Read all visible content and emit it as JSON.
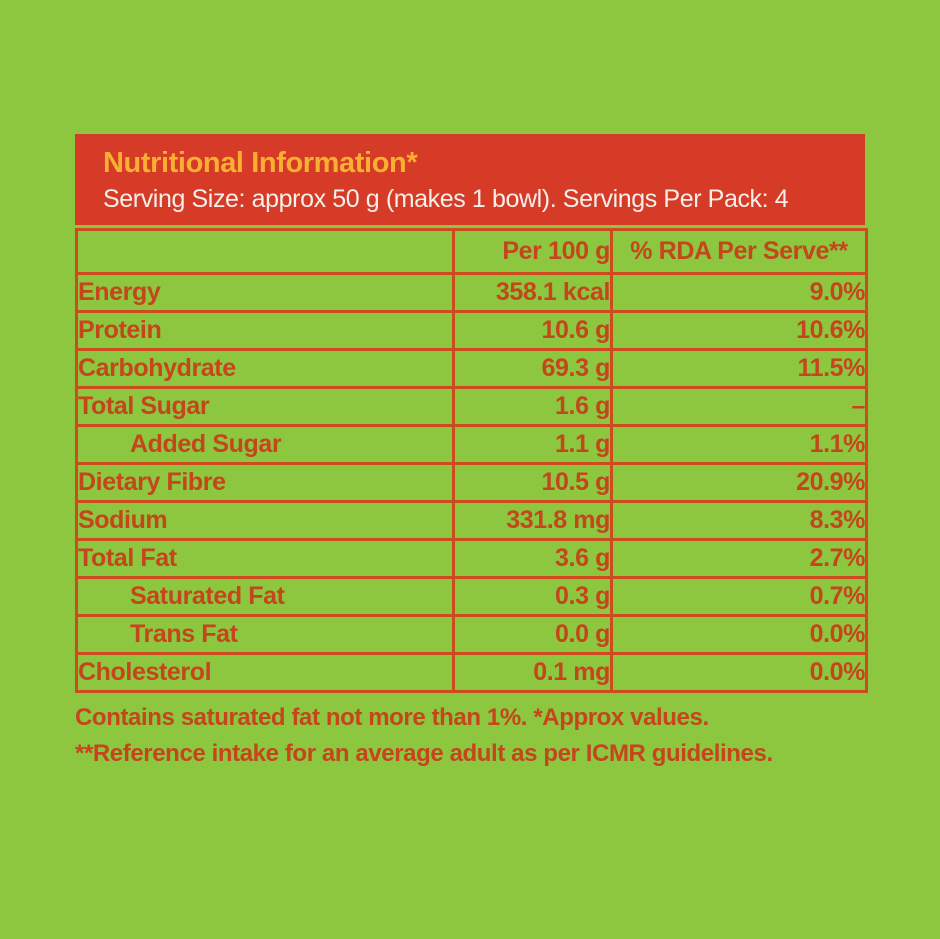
{
  "page": {
    "background_color": "#8DC63F"
  },
  "header": {
    "title": "Nutritional Information*",
    "serving_line": "Serving Size: approx 50 g (makes 1 bowl). Servings Per Pack: 4",
    "background_color": "#D53B26",
    "title_color": "#F9AF32",
    "serving_text_color": "#F4EFE9"
  },
  "table": {
    "border_color": "#CE4A1F",
    "text_color": "#C5451C",
    "columns": [
      "",
      "Per 100 g",
      "% RDA Per Serve**"
    ],
    "rows": [
      {
        "label": "Energy",
        "indent": false,
        "per_100g": "358.1 kcal",
        "rda_per_serve": "9.0%"
      },
      {
        "label": "Protein",
        "indent": false,
        "per_100g": "10.6 g",
        "rda_per_serve": "10.6%"
      },
      {
        "label": "Carbohydrate",
        "indent": false,
        "per_100g": "69.3 g",
        "rda_per_serve": "11.5%"
      },
      {
        "label": "Total Sugar",
        "indent": false,
        "per_100g": "1.6 g",
        "rda_per_serve": "–"
      },
      {
        "label": "Added Sugar",
        "indent": true,
        "per_100g": "1.1 g",
        "rda_per_serve": "1.1%"
      },
      {
        "label": "Dietary Fibre",
        "indent": false,
        "per_100g": "10.5 g",
        "rda_per_serve": "20.9%"
      },
      {
        "label": "Sodium",
        "indent": false,
        "per_100g": "331.8 mg",
        "rda_per_serve": "8.3%"
      },
      {
        "label": "Total Fat",
        "indent": false,
        "per_100g": "3.6 g",
        "rda_per_serve": "2.7%"
      },
      {
        "label": "Saturated Fat",
        "indent": true,
        "per_100g": "0.3 g",
        "rda_per_serve": "0.7%"
      },
      {
        "label": "Trans Fat",
        "indent": true,
        "per_100g": "0.0 g",
        "rda_per_serve": "0.0%"
      },
      {
        "label": "Cholesterol",
        "indent": false,
        "per_100g": "0.1 mg",
        "rda_per_serve": "0.0%"
      }
    ]
  },
  "footnotes": {
    "line1": "Contains saturated fat not more than 1%. *Approx values.",
    "line2": "**Reference intake for an average adult as per ICMR guidelines."
  }
}
